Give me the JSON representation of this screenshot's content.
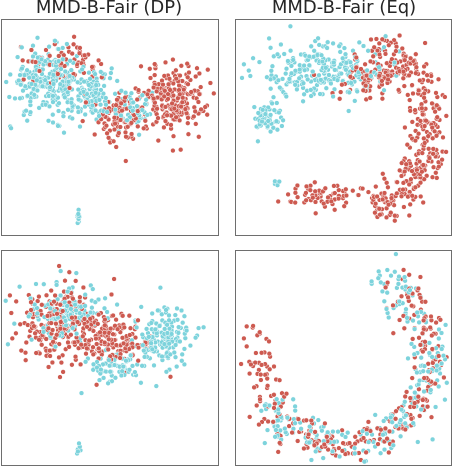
{
  "figure": {
    "titles": [
      "MMD-B-Fair (DP)",
      "MMD-B-Fair (Eq)"
    ]
  },
  "colors": {
    "group_a": "#7dd3dc",
    "group_b": "#cd5a50",
    "marker_edge": "#ffffff"
  },
  "chart_data": [
    {
      "type": "scatter",
      "title": "MMD-B-Fair (DP)",
      "xlabel": "",
      "ylabel": "",
      "xlim": [
        0,
        1
      ],
      "ylim": [
        0,
        1
      ],
      "grid": false,
      "series": [
        {
          "color": "#7dd3dc",
          "regions": [
            {
              "cx": 0.2,
              "cy": 0.72,
              "rx": 0.15,
              "ry": 0.13,
              "n": 260
            },
            {
              "cx": 0.42,
              "cy": 0.66,
              "rx": 0.12,
              "ry": 0.1,
              "n": 120
            },
            {
              "cx": 0.62,
              "cy": 0.59,
              "rx": 0.07,
              "ry": 0.08,
              "n": 45
            },
            {
              "cx": 0.35,
              "cy": 0.07,
              "rx": 0.012,
              "ry": 0.025,
              "n": 10
            }
          ]
        },
        {
          "color": "#cd5a50",
          "regions": [
            {
              "cx": 0.8,
              "cy": 0.64,
              "rx": 0.13,
              "ry": 0.14,
              "n": 240
            },
            {
              "cx": 0.56,
              "cy": 0.56,
              "rx": 0.1,
              "ry": 0.11,
              "n": 110
            },
            {
              "cx": 0.28,
              "cy": 0.81,
              "rx": 0.14,
              "ry": 0.08,
              "n": 70
            }
          ]
        }
      ]
    },
    {
      "type": "scatter",
      "title": "MMD-B-Fair (Eq)",
      "xlabel": "",
      "ylabel": "",
      "xlim": [
        0,
        1
      ],
      "ylim": [
        0,
        1
      ],
      "grid": false,
      "series": [
        {
          "color": "#7dd3dc",
          "regions": [
            {
              "cx": 0.4,
              "cy": 0.78,
              "rx": 0.25,
              "ry": 0.11,
              "n": 270
            },
            {
              "cx": 0.13,
              "cy": 0.55,
              "rx": 0.06,
              "ry": 0.07,
              "n": 60
            },
            {
              "cx": 0.18,
              "cy": 0.23,
              "rx": 0.012,
              "ry": 0.012,
              "n": 6
            }
          ]
        },
        {
          "color": "#cd5a50",
          "arc": true,
          "cx": 0.5,
          "cy": 0.5,
          "r": 0.42,
          "from_deg": -70,
          "to_deg": 70,
          "n": 340
        },
        {
          "color": "#cd5a50",
          "regions": [
            {
              "cx": 0.64,
              "cy": 0.75,
              "rx": 0.14,
              "ry": 0.09,
              "n": 80
            },
            {
              "cx": 0.4,
              "cy": 0.17,
              "rx": 0.16,
              "ry": 0.05,
              "n": 70
            }
          ]
        }
      ]
    },
    {
      "type": "scatter",
      "title": "",
      "xlabel": "",
      "ylabel": "",
      "xlim": [
        0,
        1
      ],
      "ylim": [
        0,
        1
      ],
      "grid": false,
      "series": [
        {
          "color": "#cd5a50",
          "regions": [
            {
              "cx": 0.26,
              "cy": 0.66,
              "rx": 0.18,
              "ry": 0.16,
              "n": 230
            },
            {
              "cx": 0.52,
              "cy": 0.58,
              "rx": 0.14,
              "ry": 0.12,
              "n": 150
            }
          ]
        },
        {
          "color": "#7dd3dc",
          "regions": [
            {
              "cx": 0.28,
              "cy": 0.72,
              "rx": 0.16,
              "ry": 0.12,
              "n": 140
            },
            {
              "cx": 0.76,
              "cy": 0.6,
              "rx": 0.11,
              "ry": 0.12,
              "n": 160
            },
            {
              "cx": 0.52,
              "cy": 0.45,
              "rx": 0.12,
              "ry": 0.07,
              "n": 70
            },
            {
              "cx": 0.35,
              "cy": 0.06,
              "rx": 0.012,
              "ry": 0.02,
              "n": 6
            }
          ]
        }
      ]
    },
    {
      "type": "scatter",
      "title": "",
      "xlabel": "",
      "ylabel": "",
      "xlim": [
        0,
        1
      ],
      "ylim": [
        0,
        1
      ],
      "grid": false,
      "series": [
        {
          "color": "#cd5a50",
          "arc": true,
          "cx": 0.5,
          "cy": 0.5,
          "r": 0.42,
          "from_deg": -200,
          "to_deg": 60,
          "n": 300
        },
        {
          "color": "#7dd3dc",
          "arc": true,
          "cx": 0.5,
          "cy": 0.5,
          "r": 0.42,
          "from_deg": -150,
          "to_deg": 70,
          "n": 260
        },
        {
          "color": "#7dd3dc",
          "regions": [
            {
              "cx": 0.18,
              "cy": 0.24,
              "rx": 0.012,
              "ry": 0.012,
              "n": 6
            }
          ]
        }
      ]
    }
  ]
}
